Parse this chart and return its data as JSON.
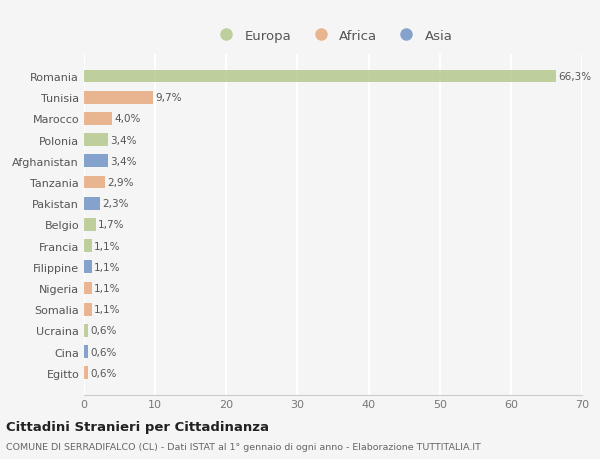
{
  "countries": [
    "Romania",
    "Tunisia",
    "Marocco",
    "Polonia",
    "Afghanistan",
    "Tanzania",
    "Pakistan",
    "Belgio",
    "Francia",
    "Filippine",
    "Nigeria",
    "Somalia",
    "Ucraina",
    "Cina",
    "Egitto"
  ],
  "values": [
    66.3,
    9.7,
    4.0,
    3.4,
    3.4,
    2.9,
    2.3,
    1.7,
    1.1,
    1.1,
    1.1,
    1.1,
    0.6,
    0.6,
    0.6
  ],
  "labels": [
    "66,3%",
    "9,7%",
    "4,0%",
    "3,4%",
    "3,4%",
    "2,9%",
    "2,3%",
    "1,7%",
    "1,1%",
    "1,1%",
    "1,1%",
    "1,1%",
    "0,6%",
    "0,6%",
    "0,6%"
  ],
  "continents": [
    "Europa",
    "Africa",
    "Africa",
    "Europa",
    "Asia",
    "Africa",
    "Asia",
    "Europa",
    "Europa",
    "Asia",
    "Africa",
    "Africa",
    "Europa",
    "Asia",
    "Africa"
  ],
  "colors": {
    "Europa": "#b5c98e",
    "Africa": "#e8a97e",
    "Asia": "#7094c4"
  },
  "bg_color": "#f5f5f5",
  "grid_color": "#ffffff",
  "title": "Cittadini Stranieri per Cittadinanza",
  "subtitle": "COMUNE DI SERRADIFALCO (CL) - Dati ISTAT al 1° gennaio di ogni anno - Elaborazione TUTTITALIA.IT",
  "xlabel_max": 70,
  "xticks": [
    0,
    10,
    20,
    30,
    40,
    50,
    60,
    70
  ],
  "legend_items": [
    "Europa",
    "Africa",
    "Asia"
  ]
}
